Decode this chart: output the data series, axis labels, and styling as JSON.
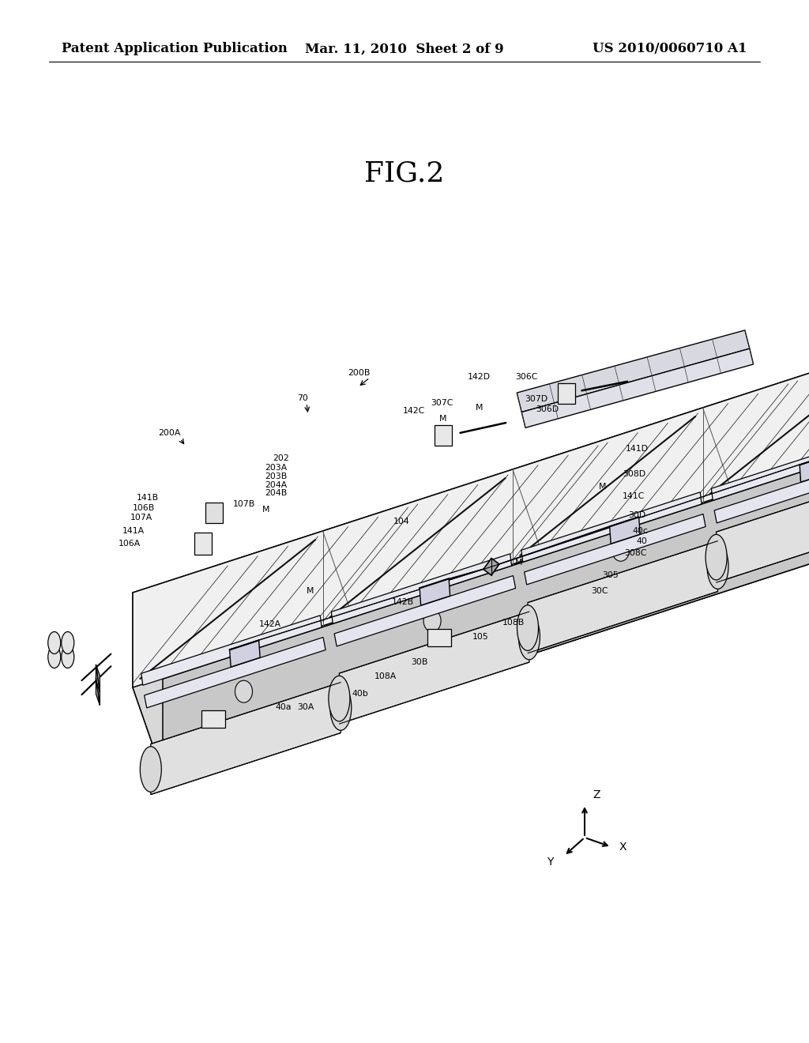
{
  "bg": "#ffffff",
  "header_left": "Patent Application Publication",
  "header_mid": "Mar. 11, 2010  Sheet 2 of 9",
  "header_right": "US 2010/0060710 A1",
  "fig_label": "FIG.2",
  "header_fs": 12,
  "fig_fs": 26,
  "label_fs": 7.8,
  "line_color": "#000000"
}
